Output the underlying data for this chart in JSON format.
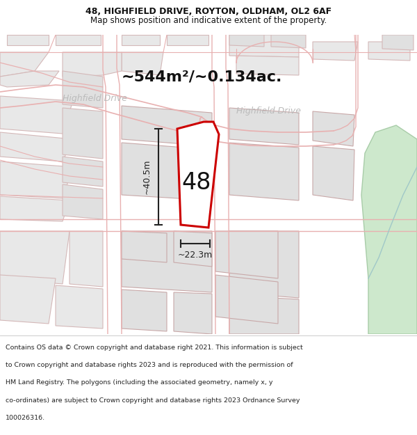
{
  "title_line1": "48, HIGHFIELD DRIVE, ROYTON, OLDHAM, OL2 6AF",
  "title_line2": "Map shows position and indicative extent of the property.",
  "area_text": "~544m²/~0.134ac.",
  "label_48": "48",
  "dim_height": "~40.5m",
  "dim_width": "~22.3m",
  "road_label_left": "Highfield Drive",
  "road_label_right": "Highfield Drive",
  "footer_lines": [
    "Contains OS data © Crown copyright and database right 2021. This information is subject",
    "to Crown copyright and database rights 2023 and is reproduced with the permission of",
    "HM Land Registry. The polygons (including the associated geometry, namely x, y",
    "co-ordinates) are subject to Crown copyright and database rights 2023 Ordnance Survey",
    "100026316."
  ],
  "bg_color": "#ffffff",
  "map_bg": "#f7f7f7",
  "parcel_fill": "#e8e8e8",
  "parcel_edge": "#d4b8b8",
  "parcel_edge_dark": "#c8a8a8",
  "road_line_color": "#e8b0b0",
  "highlight_edge": "#cc0000",
  "highlight_fill": "#ffffff",
  "dim_color": "#222222",
  "text_color": "#111111",
  "road_text_color": "#bbbbbb",
  "green_fill": "#cde8cc",
  "green_edge": "#a8cca8",
  "title_fs": 9,
  "subtitle_fs": 8.5,
  "area_fs": 16,
  "num_fs": 24,
  "dim_fs": 9,
  "road_fs": 9,
  "footer_fs": 6.8
}
